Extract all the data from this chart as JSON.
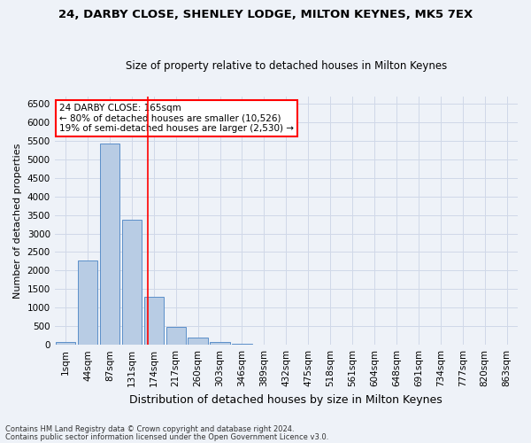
{
  "title1": "24, DARBY CLOSE, SHENLEY LODGE, MILTON KEYNES, MK5 7EX",
  "title2": "Size of property relative to detached houses in Milton Keynes",
  "xlabel": "Distribution of detached houses by size in Milton Keynes",
  "ylabel": "Number of detached properties",
  "categories": [
    "1sqm",
    "44sqm",
    "87sqm",
    "131sqm",
    "174sqm",
    "217sqm",
    "260sqm",
    "303sqm",
    "346sqm",
    "389sqm",
    "432sqm",
    "475sqm",
    "518sqm",
    "561sqm",
    "604sqm",
    "648sqm",
    "691sqm",
    "734sqm",
    "777sqm",
    "820sqm",
    "863sqm"
  ],
  "values": [
    75,
    2270,
    5420,
    3380,
    1300,
    490,
    190,
    80,
    20,
    0,
    0,
    0,
    0,
    0,
    0,
    0,
    0,
    0,
    0,
    0,
    0
  ],
  "bar_color": "#b8cce4",
  "bar_edge_color": "#5b8fc9",
  "grid_color": "#d0d8e8",
  "bg_color": "#eef2f8",
  "vline_position": 3.72,
  "vline_color": "red",
  "annotation_text": "24 DARBY CLOSE: 165sqm\n← 80% of detached houses are smaller (10,526)\n19% of semi-detached houses are larger (2,530) →",
  "annotation_box_color": "white",
  "annotation_box_edge": "red",
  "footer1": "Contains HM Land Registry data © Crown copyright and database right 2024.",
  "footer2": "Contains public sector information licensed under the Open Government Licence v3.0.",
  "ylim": [
    0,
    6700
  ],
  "yticks": [
    0,
    500,
    1000,
    1500,
    2000,
    2500,
    3000,
    3500,
    4000,
    4500,
    5000,
    5500,
    6000,
    6500
  ],
  "title1_fontsize": 9.5,
  "title2_fontsize": 8.5,
  "ylabel_fontsize": 8,
  "xlabel_fontsize": 9,
  "tick_fontsize": 7.5,
  "annot_fontsize": 7.5,
  "footer_fontsize": 6
}
